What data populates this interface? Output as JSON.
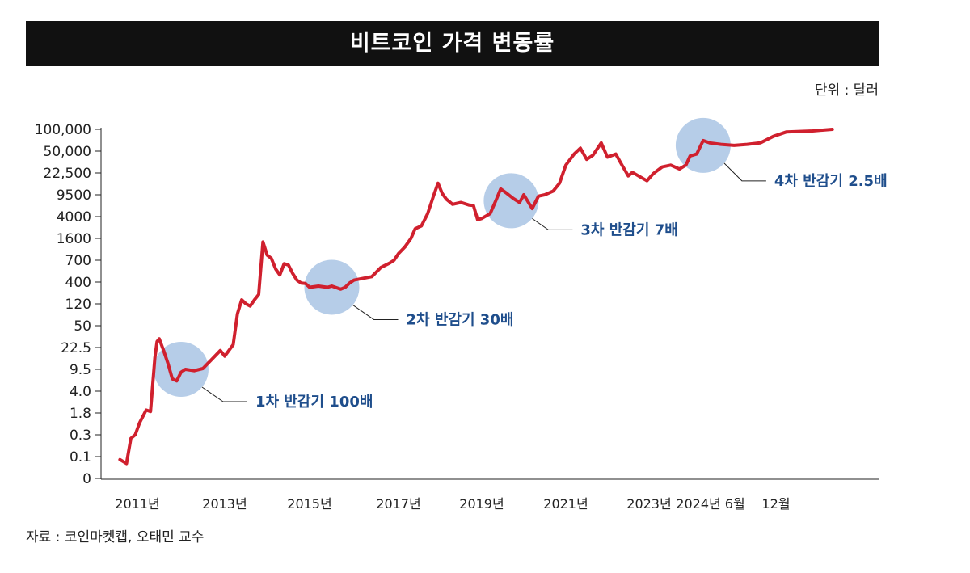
{
  "header": {
    "title": "비트코인 가격 변동률"
  },
  "unit_label": "단위 : 달러",
  "source": "자료 : 코인마켓캡, 오태민 교수",
  "colors": {
    "line": "#d0202e",
    "halving_circle": "#a9c4e4",
    "annotation": "#1f4e8c",
    "title_bg": "#111111"
  },
  "chart_data": {
    "type": "line",
    "title": "비트코인 가격 변동률",
    "ylabel": "단위 : 달러",
    "y_scale": "log-categorical",
    "y_ticks": [
      "100,000",
      "50,000",
      "22,500",
      "9500",
      "4000",
      "1600",
      "700",
      "400",
      "120",
      "50",
      "22.5",
      "9.5",
      "4.0",
      "1.8",
      "0.3",
      "0.1",
      "0"
    ],
    "x_ticks": [
      "2011년",
      "2013년",
      "2015년",
      "2017년",
      "2019년",
      "2021년",
      "2023년",
      "2024년 6월",
      "12월"
    ],
    "series": [
      {
        "name": "비트코인 가격",
        "points": [
          [
            2010.6,
            0.08
          ],
          [
            2010.75,
            0.06
          ],
          [
            2010.85,
            0.25
          ],
          [
            2010.95,
            0.3
          ],
          [
            2011.05,
            0.8
          ],
          [
            2011.2,
            2.0
          ],
          [
            2011.3,
            1.9
          ],
          [
            2011.4,
            15
          ],
          [
            2011.45,
            28
          ],
          [
            2011.5,
            31
          ],
          [
            2011.6,
            20
          ],
          [
            2011.7,
            12
          ],
          [
            2011.8,
            6.5
          ],
          [
            2011.9,
            6.0
          ],
          [
            2012.0,
            8.5
          ],
          [
            2012.1,
            9.5
          ],
          [
            2012.3,
            9.0
          ],
          [
            2012.5,
            9.8
          ],
          [
            2012.7,
            14
          ],
          [
            2012.9,
            20
          ],
          [
            2013.0,
            16
          ],
          [
            2013.2,
            25
          ],
          [
            2013.3,
            80
          ],
          [
            2013.4,
            150
          ],
          [
            2013.5,
            120
          ],
          [
            2013.6,
            110
          ],
          [
            2013.7,
            150
          ],
          [
            2013.8,
            200
          ],
          [
            2013.9,
            1400
          ],
          [
            2014.0,
            850
          ],
          [
            2014.1,
            750
          ],
          [
            2014.2,
            560
          ],
          [
            2014.3,
            480
          ],
          [
            2014.4,
            640
          ],
          [
            2014.5,
            620
          ],
          [
            2014.6,
            500
          ],
          [
            2014.7,
            420
          ],
          [
            2014.8,
            380
          ],
          [
            2014.9,
            370
          ],
          [
            2015.0,
            300
          ],
          [
            2015.2,
            320
          ],
          [
            2015.4,
            300
          ],
          [
            2015.5,
            320
          ],
          [
            2015.7,
            270
          ],
          [
            2015.8,
            300
          ],
          [
            2015.9,
            380
          ],
          [
            2016.0,
            420
          ],
          [
            2016.2,
            440
          ],
          [
            2016.4,
            460
          ],
          [
            2016.6,
            580
          ],
          [
            2016.8,
            650
          ],
          [
            2016.9,
            700
          ],
          [
            2017.0,
            900
          ],
          [
            2017.15,
            1150
          ],
          [
            2017.3,
            1600
          ],
          [
            2017.4,
            2400
          ],
          [
            2017.55,
            2700
          ],
          [
            2017.7,
            4500
          ],
          [
            2017.85,
            9500
          ],
          [
            2017.95,
            15000
          ],
          [
            2018.05,
            10000
          ],
          [
            2018.15,
            8000
          ],
          [
            2018.3,
            6500
          ],
          [
            2018.5,
            7000
          ],
          [
            2018.7,
            6300
          ],
          [
            2018.8,
            6200
          ],
          [
            2018.9,
            3500
          ],
          [
            2019.0,
            3700
          ],
          [
            2019.2,
            4500
          ],
          [
            2019.35,
            8000
          ],
          [
            2019.45,
            12000
          ],
          [
            2019.6,
            10000
          ],
          [
            2019.75,
            8200
          ],
          [
            2019.9,
            7000
          ],
          [
            2020.0,
            9500
          ],
          [
            2020.2,
            5500
          ],
          [
            2020.35,
            9000
          ],
          [
            2020.5,
            9500
          ],
          [
            2020.7,
            11000
          ],
          [
            2020.85,
            15000
          ],
          [
            2021.0,
            30000
          ],
          [
            2021.2,
            45000
          ],
          [
            2021.35,
            55000
          ],
          [
            2021.5,
            37000
          ],
          [
            2021.65,
            43000
          ],
          [
            2021.85,
            65000
          ],
          [
            2022.0,
            40000
          ],
          [
            2022.2,
            45000
          ],
          [
            2022.35,
            30000
          ],
          [
            2022.5,
            20000
          ],
          [
            2022.6,
            23000
          ],
          [
            2022.8,
            19000
          ],
          [
            2022.95,
            16500
          ],
          [
            2023.1,
            22000
          ],
          [
            2023.3,
            28000
          ],
          [
            2023.5,
            30000
          ],
          [
            2023.7,
            26000
          ],
          [
            2023.85,
            30000
          ],
          [
            2023.95,
            42000
          ],
          [
            2024.1,
            45000
          ],
          [
            2024.25,
            70000
          ],
          [
            2024.4,
            65000
          ],
          [
            2024.5,
            62000
          ],
          [
            2024.6,
            60000
          ],
          [
            2024.7,
            62000
          ],
          [
            2024.8,
            65000
          ],
          [
            2024.9,
            80000
          ],
          [
            2025.0,
            92000
          ],
          [
            2025.2,
            95000
          ],
          [
            2025.35,
            100000
          ]
        ]
      }
    ],
    "annotations": [
      {
        "label": "1차 반감기 100배",
        "at": [
          2012.0,
          9.5
        ]
      },
      {
        "label": "2차 반감기 30배",
        "at": [
          2015.5,
          300
        ]
      },
      {
        "label": "3차 반감기 7배",
        "at": [
          2019.7,
          7500
        ]
      },
      {
        "label": "4차 반감기 2.5배",
        "at": [
          2024.25,
          60000
        ]
      }
    ]
  }
}
